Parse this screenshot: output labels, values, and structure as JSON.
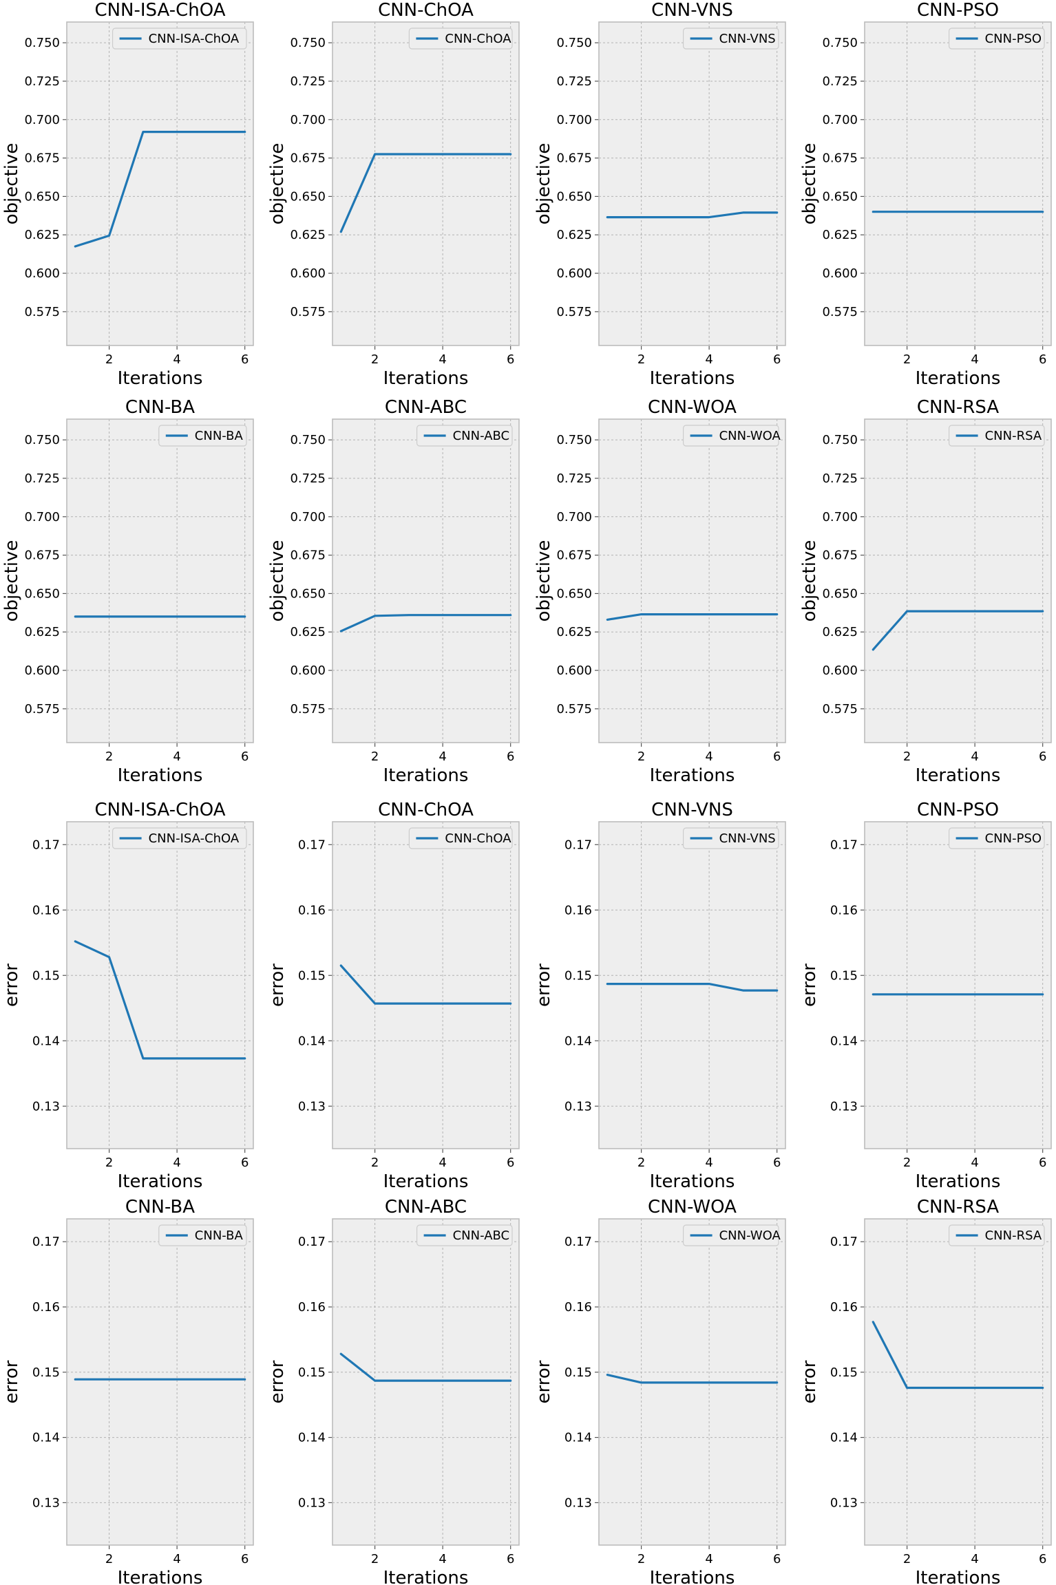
{
  "chart_data": [
    {
      "type": "line",
      "title": "CNN-ISA-ChOA",
      "xlabel": "Iterations",
      "ylabel": "objective",
      "x": [
        1,
        2,
        3,
        4,
        5,
        6
      ],
      "xticks": [
        2,
        4,
        6
      ],
      "xlim": [
        0.75,
        6.25
      ],
      "yticks": [
        0.575,
        0.6,
        0.625,
        0.65,
        0.675,
        0.7,
        0.725,
        0.75
      ],
      "ytick_labels": [
        "0.575",
        "0.600",
        "0.625",
        "0.650",
        "0.675",
        "0.700",
        "0.725",
        "0.750"
      ],
      "ylim": [
        0.553,
        0.7635
      ],
      "grid": true,
      "legend": "upper right",
      "series": [
        {
          "name": "CNN-ISA-ChOA",
          "color": "#1f77b4",
          "values": [
            0.6175,
            0.6245,
            0.692,
            0.692,
            0.692,
            0.692
          ]
        }
      ]
    },
    {
      "type": "line",
      "title": "CNN-ChOA",
      "xlabel": "Iterations",
      "ylabel": "objective",
      "x": [
        1,
        2,
        3,
        4,
        5,
        6
      ],
      "xticks": [
        2,
        4,
        6
      ],
      "xlim": [
        0.75,
        6.25
      ],
      "yticks": [
        0.575,
        0.6,
        0.625,
        0.65,
        0.675,
        0.7,
        0.725,
        0.75
      ],
      "ytick_labels": [
        "0.575",
        "0.600",
        "0.625",
        "0.650",
        "0.675",
        "0.700",
        "0.725",
        "0.750"
      ],
      "ylim": [
        0.553,
        0.7635
      ],
      "grid": true,
      "legend": "upper right",
      "series": [
        {
          "name": "CNN-ChOA",
          "color": "#1f77b4",
          "values": [
            0.627,
            0.6775,
            0.6775,
            0.6775,
            0.6775,
            0.6775
          ]
        }
      ]
    },
    {
      "type": "line",
      "title": "CNN-VNS",
      "xlabel": "Iterations",
      "ylabel": "objective",
      "x": [
        1,
        2,
        3,
        4,
        5,
        6
      ],
      "xticks": [
        2,
        4,
        6
      ],
      "xlim": [
        0.75,
        6.25
      ],
      "yticks": [
        0.575,
        0.6,
        0.625,
        0.65,
        0.675,
        0.7,
        0.725,
        0.75
      ],
      "ytick_labels": [
        "0.575",
        "0.600",
        "0.625",
        "0.650",
        "0.675",
        "0.700",
        "0.725",
        "0.750"
      ],
      "ylim": [
        0.553,
        0.7635
      ],
      "grid": true,
      "legend": "upper right",
      "series": [
        {
          "name": "CNN-VNS",
          "color": "#1f77b4",
          "values": [
            0.6365,
            0.6365,
            0.6365,
            0.6365,
            0.6395,
            0.6395
          ]
        }
      ]
    },
    {
      "type": "line",
      "title": "CNN-PSO",
      "xlabel": "Iterations",
      "ylabel": "objective",
      "x": [
        1,
        2,
        3,
        4,
        5,
        6
      ],
      "xticks": [
        2,
        4,
        6
      ],
      "xlim": [
        0.75,
        6.25
      ],
      "yticks": [
        0.575,
        0.6,
        0.625,
        0.65,
        0.675,
        0.7,
        0.725,
        0.75
      ],
      "ytick_labels": [
        "0.575",
        "0.600",
        "0.625",
        "0.650",
        "0.675",
        "0.700",
        "0.725",
        "0.750"
      ],
      "ylim": [
        0.553,
        0.7635
      ],
      "grid": true,
      "legend": "upper right",
      "series": [
        {
          "name": "CNN-PSO",
          "color": "#1f77b4",
          "values": [
            0.64,
            0.64,
            0.64,
            0.64,
            0.64,
            0.64
          ]
        }
      ]
    },
    {
      "type": "line",
      "title": "CNN-BA",
      "xlabel": "Iterations",
      "ylabel": "objective",
      "x": [
        1,
        2,
        3,
        4,
        5,
        6
      ],
      "xticks": [
        2,
        4,
        6
      ],
      "xlim": [
        0.75,
        6.25
      ],
      "yticks": [
        0.575,
        0.6,
        0.625,
        0.65,
        0.675,
        0.7,
        0.725,
        0.75
      ],
      "ytick_labels": [
        "0.575",
        "0.600",
        "0.625",
        "0.650",
        "0.675",
        "0.700",
        "0.725",
        "0.750"
      ],
      "ylim": [
        0.553,
        0.7635
      ],
      "grid": true,
      "legend": "upper right",
      "series": [
        {
          "name": "CNN-BA",
          "color": "#1f77b4",
          "values": [
            0.635,
            0.635,
            0.635,
            0.635,
            0.635,
            0.635
          ]
        }
      ]
    },
    {
      "type": "line",
      "title": "CNN-ABC",
      "xlabel": "Iterations",
      "ylabel": "objective",
      "x": [
        1,
        2,
        3,
        4,
        5,
        6
      ],
      "xticks": [
        2,
        4,
        6
      ],
      "xlim": [
        0.75,
        6.25
      ],
      "yticks": [
        0.575,
        0.6,
        0.625,
        0.65,
        0.675,
        0.7,
        0.725,
        0.75
      ],
      "ytick_labels": [
        "0.575",
        "0.600",
        "0.625",
        "0.650",
        "0.675",
        "0.700",
        "0.725",
        "0.750"
      ],
      "ylim": [
        0.553,
        0.7635
      ],
      "grid": true,
      "legend": "upper right",
      "series": [
        {
          "name": "CNN-ABC",
          "color": "#1f77b4",
          "values": [
            0.6255,
            0.6355,
            0.636,
            0.636,
            0.636,
            0.636
          ]
        }
      ]
    },
    {
      "type": "line",
      "title": "CNN-WOA",
      "xlabel": "Iterations",
      "ylabel": "objective",
      "x": [
        1,
        2,
        3,
        4,
        5,
        6
      ],
      "xticks": [
        2,
        4,
        6
      ],
      "xlim": [
        0.75,
        6.25
      ],
      "yticks": [
        0.575,
        0.6,
        0.625,
        0.65,
        0.675,
        0.7,
        0.725,
        0.75
      ],
      "ytick_labels": [
        "0.575",
        "0.600",
        "0.625",
        "0.650",
        "0.675",
        "0.700",
        "0.725",
        "0.750"
      ],
      "ylim": [
        0.553,
        0.7635
      ],
      "grid": true,
      "legend": "upper right",
      "series": [
        {
          "name": "CNN-WOA",
          "color": "#1f77b4",
          "values": [
            0.633,
            0.6365,
            0.6365,
            0.6365,
            0.6365,
            0.6365
          ]
        }
      ]
    },
    {
      "type": "line",
      "title": "CNN-RSA",
      "xlabel": "Iterations",
      "ylabel": "objective",
      "x": [
        1,
        2,
        3,
        4,
        5,
        6
      ],
      "xticks": [
        2,
        4,
        6
      ],
      "xlim": [
        0.75,
        6.25
      ],
      "yticks": [
        0.575,
        0.6,
        0.625,
        0.65,
        0.675,
        0.7,
        0.725,
        0.75
      ],
      "ytick_labels": [
        "0.575",
        "0.600",
        "0.625",
        "0.650",
        "0.675",
        "0.700",
        "0.725",
        "0.750"
      ],
      "ylim": [
        0.553,
        0.7635
      ],
      "grid": true,
      "legend": "upper right",
      "series": [
        {
          "name": "CNN-RSA",
          "color": "#1f77b4",
          "values": [
            0.6135,
            0.6385,
            0.6385,
            0.6385,
            0.6385,
            0.6385
          ]
        }
      ]
    },
    {
      "type": "line",
      "title": "CNN-ISA-ChOA",
      "xlabel": "Iterations",
      "ylabel": "error",
      "x": [
        1,
        2,
        3,
        4,
        5,
        6
      ],
      "xticks": [
        2,
        4,
        6
      ],
      "xlim": [
        0.75,
        6.25
      ],
      "yticks": [
        0.13,
        0.14,
        0.15,
        0.16,
        0.17
      ],
      "ytick_labels": [
        "0.13",
        "0.14",
        "0.15",
        "0.16",
        "0.17"
      ],
      "ylim": [
        0.1235,
        0.1735
      ],
      "grid": true,
      "legend": "upper right",
      "series": [
        {
          "name": "CNN-ISA-ChOA",
          "color": "#1f77b4",
          "values": [
            0.1552,
            0.1528,
            0.1373,
            0.1373,
            0.1373,
            0.1373
          ]
        }
      ]
    },
    {
      "type": "line",
      "title": "CNN-ChOA",
      "xlabel": "Iterations",
      "ylabel": "error",
      "x": [
        1,
        2,
        3,
        4,
        5,
        6
      ],
      "xticks": [
        2,
        4,
        6
      ],
      "xlim": [
        0.75,
        6.25
      ],
      "yticks": [
        0.13,
        0.14,
        0.15,
        0.16,
        0.17
      ],
      "ytick_labels": [
        "0.13",
        "0.14",
        "0.15",
        "0.16",
        "0.17"
      ],
      "ylim": [
        0.1235,
        0.1735
      ],
      "grid": true,
      "legend": "upper right",
      "series": [
        {
          "name": "CNN-ChOA",
          "color": "#1f77b4",
          "values": [
            0.1515,
            0.1457,
            0.1457,
            0.1457,
            0.1457,
            0.1457
          ]
        }
      ]
    },
    {
      "type": "line",
      "title": "CNN-VNS",
      "xlabel": "Iterations",
      "ylabel": "error",
      "x": [
        1,
        2,
        3,
        4,
        5,
        6
      ],
      "xticks": [
        2,
        4,
        6
      ],
      "xlim": [
        0.75,
        6.25
      ],
      "yticks": [
        0.13,
        0.14,
        0.15,
        0.16,
        0.17
      ],
      "ytick_labels": [
        "0.13",
        "0.14",
        "0.15",
        "0.16",
        "0.17"
      ],
      "ylim": [
        0.1235,
        0.1735
      ],
      "grid": true,
      "legend": "upper right",
      "series": [
        {
          "name": "CNN-VNS",
          "color": "#1f77b4",
          "values": [
            0.1487,
            0.1487,
            0.1487,
            0.1487,
            0.1477,
            0.1477
          ]
        }
      ]
    },
    {
      "type": "line",
      "title": "CNN-PSO",
      "xlabel": "Iterations",
      "ylabel": "error",
      "x": [
        1,
        2,
        3,
        4,
        5,
        6
      ],
      "xticks": [
        2,
        4,
        6
      ],
      "xlim": [
        0.75,
        6.25
      ],
      "yticks": [
        0.13,
        0.14,
        0.15,
        0.16,
        0.17
      ],
      "ytick_labels": [
        "0.13",
        "0.14",
        "0.15",
        "0.16",
        "0.17"
      ],
      "ylim": [
        0.1235,
        0.1735
      ],
      "grid": true,
      "legend": "upper right",
      "series": [
        {
          "name": "CNN-PSO",
          "color": "#1f77b4",
          "values": [
            0.1471,
            0.1471,
            0.1471,
            0.1471,
            0.1471,
            0.1471
          ]
        }
      ]
    },
    {
      "type": "line",
      "title": "CNN-BA",
      "xlabel": "Iterations",
      "ylabel": "error",
      "x": [
        1,
        2,
        3,
        4,
        5,
        6
      ],
      "xticks": [
        2,
        4,
        6
      ],
      "xlim": [
        0.75,
        6.25
      ],
      "yticks": [
        0.13,
        0.14,
        0.15,
        0.16,
        0.17
      ],
      "ytick_labels": [
        "0.13",
        "0.14",
        "0.15",
        "0.16",
        "0.17"
      ],
      "ylim": [
        0.1235,
        0.1735
      ],
      "grid": true,
      "legend": "upper right",
      "series": [
        {
          "name": "CNN-BA",
          "color": "#1f77b4",
          "values": [
            0.1489,
            0.1489,
            0.1489,
            0.1489,
            0.1489,
            0.1489
          ]
        }
      ]
    },
    {
      "type": "line",
      "title": "CNN-ABC",
      "xlabel": "Iterations",
      "ylabel": "error",
      "x": [
        1,
        2,
        3,
        4,
        5,
        6
      ],
      "xticks": [
        2,
        4,
        6
      ],
      "xlim": [
        0.75,
        6.25
      ],
      "yticks": [
        0.13,
        0.14,
        0.15,
        0.16,
        0.17
      ],
      "ytick_labels": [
        "0.13",
        "0.14",
        "0.15",
        "0.16",
        "0.17"
      ],
      "ylim": [
        0.1235,
        0.1735
      ],
      "grid": true,
      "legend": "upper right",
      "series": [
        {
          "name": "CNN-ABC",
          "color": "#1f77b4",
          "values": [
            0.1528,
            0.1487,
            0.1487,
            0.1487,
            0.1487,
            0.1487
          ]
        }
      ]
    },
    {
      "type": "line",
      "title": "CNN-WOA",
      "xlabel": "Iterations",
      "ylabel": "error",
      "x": [
        1,
        2,
        3,
        4,
        5,
        6
      ],
      "xticks": [
        2,
        4,
        6
      ],
      "xlim": [
        0.75,
        6.25
      ],
      "yticks": [
        0.13,
        0.14,
        0.15,
        0.16,
        0.17
      ],
      "ytick_labels": [
        "0.13",
        "0.14",
        "0.15",
        "0.16",
        "0.17"
      ],
      "ylim": [
        0.1235,
        0.1735
      ],
      "grid": true,
      "legend": "upper right",
      "series": [
        {
          "name": "CNN-WOA",
          "color": "#1f77b4",
          "values": [
            0.1496,
            0.1484,
            0.1484,
            0.1484,
            0.1484,
            0.1484
          ]
        }
      ]
    },
    {
      "type": "line",
      "title": "CNN-RSA",
      "xlabel": "Iterations",
      "ylabel": "error",
      "x": [
        1,
        2,
        3,
        4,
        5,
        6
      ],
      "xticks": [
        2,
        4,
        6
      ],
      "xlim": [
        0.75,
        6.25
      ],
      "yticks": [
        0.13,
        0.14,
        0.15,
        0.16,
        0.17
      ],
      "ytick_labels": [
        "0.13",
        "0.14",
        "0.15",
        "0.16",
        "0.17"
      ],
      "ylim": [
        0.1235,
        0.1735
      ],
      "grid": true,
      "legend": "upper right",
      "series": [
        {
          "name": "CNN-RSA",
          "color": "#1f77b4",
          "values": [
            0.1577,
            0.1476,
            0.1476,
            0.1476,
            0.1476,
            0.1476
          ]
        }
      ]
    }
  ]
}
